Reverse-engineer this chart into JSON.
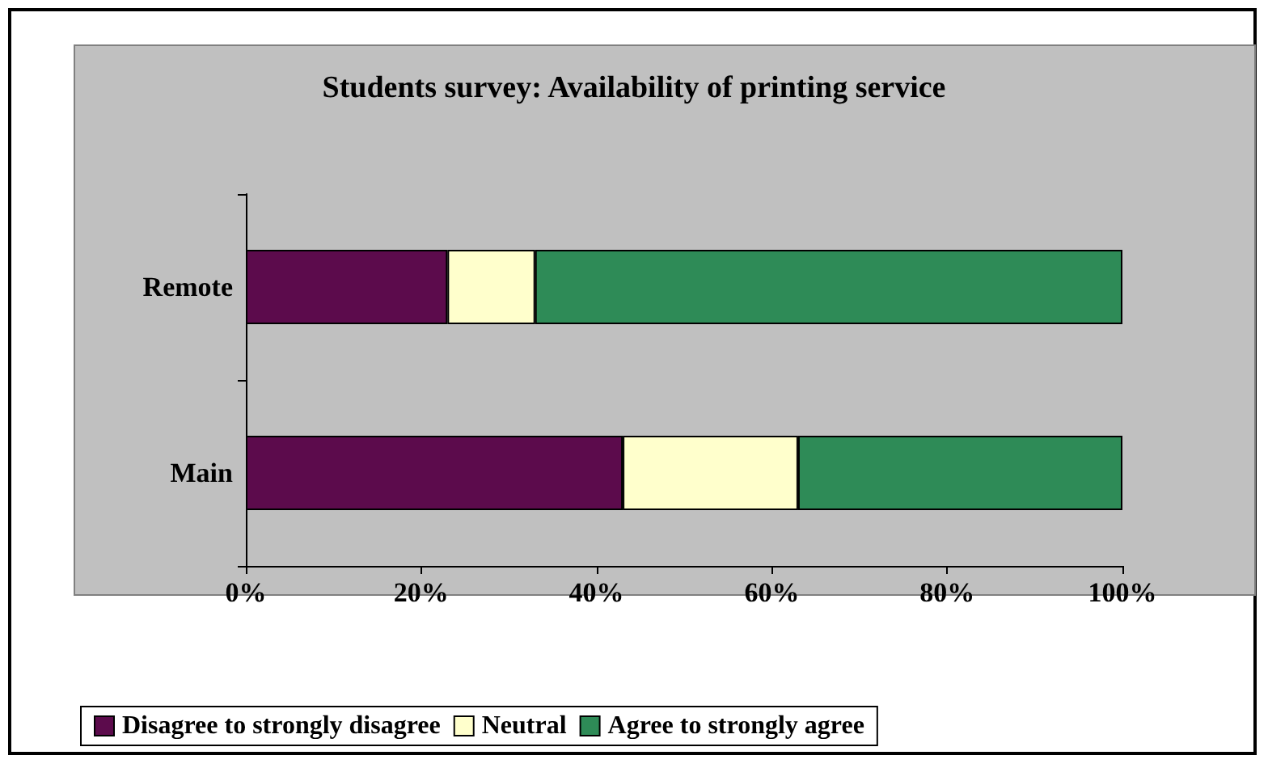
{
  "chart_data": {
    "type": "bar",
    "title": "Students survey: Availability of printing service",
    "orientation": "horizontal",
    "stacked": true,
    "categories": [
      "Remote",
      "Main"
    ],
    "series": [
      {
        "name": "Disagree to strongly disagree",
        "color": "#5c0b4c",
        "values": [
          23,
          43
        ]
      },
      {
        "name": "Neutral",
        "color": "#ffffcc",
        "values": [
          10,
          20
        ]
      },
      {
        "name": "Agree to strongly agree",
        "color": "#2e8b57",
        "values": [
          67,
          37
        ]
      }
    ],
    "xlim": [
      0,
      100
    ],
    "xticks": [
      {
        "value": 0,
        "label": "0%"
      },
      {
        "value": 20,
        "label": "20%"
      },
      {
        "value": 40,
        "label": "40%"
      },
      {
        "value": 60,
        "label": "60%"
      },
      {
        "value": 80,
        "label": "80%"
      },
      {
        "value": 100,
        "label": "100%"
      }
    ],
    "grid": false,
    "legend": "bottom"
  }
}
